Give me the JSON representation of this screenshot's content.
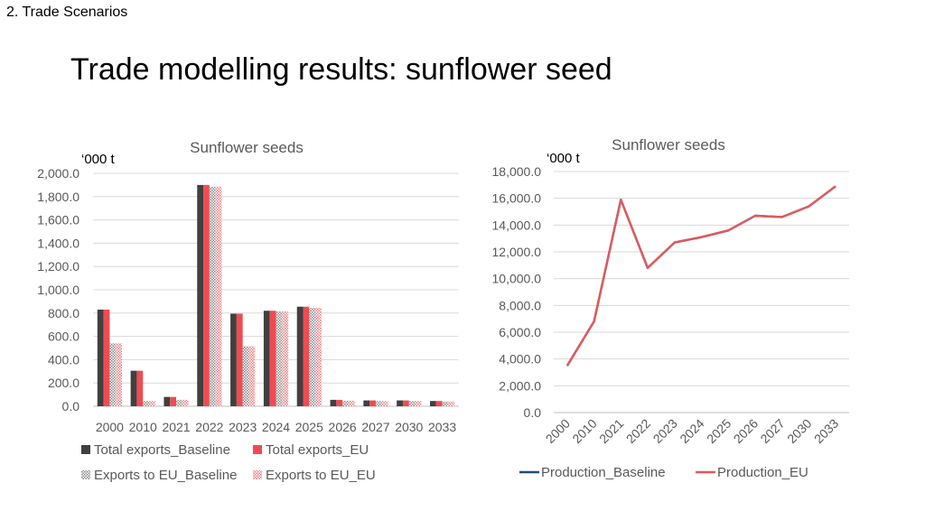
{
  "section": "2. Trade Scenarios",
  "title": "Trade modelling results: sunflower seed",
  "colors": {
    "total_baseline": "#404040",
    "total_eu": "#f04b52",
    "eu_baseline": "#9a9a9a",
    "eu_eu": "#f3a3a6",
    "line_baseline": "#1f4e79",
    "line_eu": "#e05a5a",
    "grid": "#d9d9d9",
    "axis_text": "#595959"
  },
  "chart_data": [
    {
      "type": "bar",
      "title": "Sunflower seeds",
      "unit_label": "‘000 t",
      "categories": [
        "2000",
        "2010",
        "2021",
        "2022",
        "2023",
        "2024",
        "2025",
        "2026",
        "2027",
        "2030",
        "2033"
      ],
      "ylim": [
        0,
        2000
      ],
      "yticks": [
        "0.0",
        "200.0",
        "400.0",
        "600.0",
        "800.0",
        "1,000.0",
        "1,200.0",
        "1,400.0",
        "1,600.0",
        "1,800.0",
        "2,000.0"
      ],
      "grid": true,
      "legend_position": "bottom",
      "series": [
        {
          "name": "Total exports_Baseline",
          "values": [
            830,
            305,
            80,
            1900,
            795,
            820,
            855,
            55,
            50,
            50,
            45
          ],
          "color_key": "total_baseline",
          "pattern": false
        },
        {
          "name": "Total exports_EU",
          "values": [
            830,
            305,
            80,
            1900,
            795,
            820,
            855,
            55,
            50,
            50,
            45
          ],
          "color_key": "total_eu",
          "pattern": false
        },
        {
          "name": "Exports to EU_Baseline",
          "values": [
            540,
            45,
            55,
            1885,
            515,
            815,
            845,
            48,
            45,
            45,
            40
          ],
          "color_key": "eu_baseline",
          "pattern": true
        },
        {
          "name": "Exports to EU_EU",
          "values": [
            540,
            45,
            55,
            1885,
            515,
            815,
            845,
            48,
            45,
            45,
            40
          ],
          "color_key": "eu_eu",
          "pattern": true
        }
      ]
    },
    {
      "type": "line",
      "title": "Sunflower seeds",
      "unit_label": "‘000 t",
      "categories": [
        "2000",
        "2010",
        "2021",
        "2022",
        "2023",
        "2024",
        "2025",
        "2026",
        "2027",
        "2030",
        "2033"
      ],
      "ylim": [
        0,
        18000
      ],
      "yticks": [
        "0.0",
        "2,000.0",
        "4,000.0",
        "6,000.0",
        "8,000.0",
        "10,000.0",
        "12,000.0",
        "14,000.0",
        "16,000.0",
        "18,000.0"
      ],
      "grid": true,
      "legend_position": "bottom",
      "series": [
        {
          "name": "Production_Baseline",
          "values": [
            3500,
            6800,
            15900,
            10800,
            12700,
            13100,
            13600,
            14700,
            14600,
            15400,
            16900
          ],
          "color_key": "line_baseline"
        },
        {
          "name": "Production_EU",
          "values": [
            3500,
            6800,
            15900,
            10800,
            12700,
            13100,
            13600,
            14700,
            14600,
            15400,
            16900
          ],
          "color_key": "line_eu"
        }
      ]
    }
  ]
}
